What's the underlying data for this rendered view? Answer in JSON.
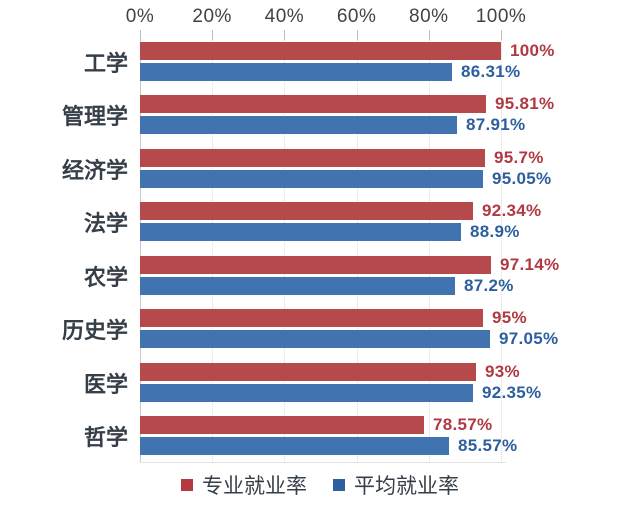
{
  "chart_data": {
    "type": "bar",
    "orientation": "horizontal",
    "title": "",
    "xlabel": "",
    "ylabel": "",
    "xlim": [
      0,
      100
    ],
    "x_ticks": [
      "0%",
      "20%",
      "40%",
      "60%",
      "80%",
      "100%"
    ],
    "x_tick_values": [
      0,
      20,
      40,
      60,
      80,
      100
    ],
    "grid": "dotted-vertical",
    "legend_position": "bottom",
    "categories": [
      "工学",
      "管理学",
      "经济学",
      "法学",
      "农学",
      "历史学",
      "医学",
      "哲学"
    ],
    "series": [
      {
        "name": "专业就业率",
        "color": "#b5494c",
        "label_color": "#b03a41",
        "swatch_color": "#b23a40",
        "values": [
          100,
          95.81,
          95.7,
          92.34,
          97.14,
          95,
          93,
          78.57
        ],
        "labels": [
          "100%",
          "95.81%",
          "95.7%",
          "92.34%",
          "97.14%",
          "95%",
          "93%",
          "78.57%"
        ]
      },
      {
        "name": "平均就业率",
        "color": "#4273b1",
        "label_color": "#2d5f9f",
        "swatch_color": "#2d5f9f",
        "values": [
          86.31,
          87.91,
          95.05,
          88.9,
          87.2,
          97.05,
          92.35,
          85.57
        ],
        "labels": [
          "86.31%",
          "87.91%",
          "95.05%",
          "88.9%",
          "87.2%",
          "97.05%",
          "92.35%",
          "85.57%"
        ]
      }
    ]
  }
}
